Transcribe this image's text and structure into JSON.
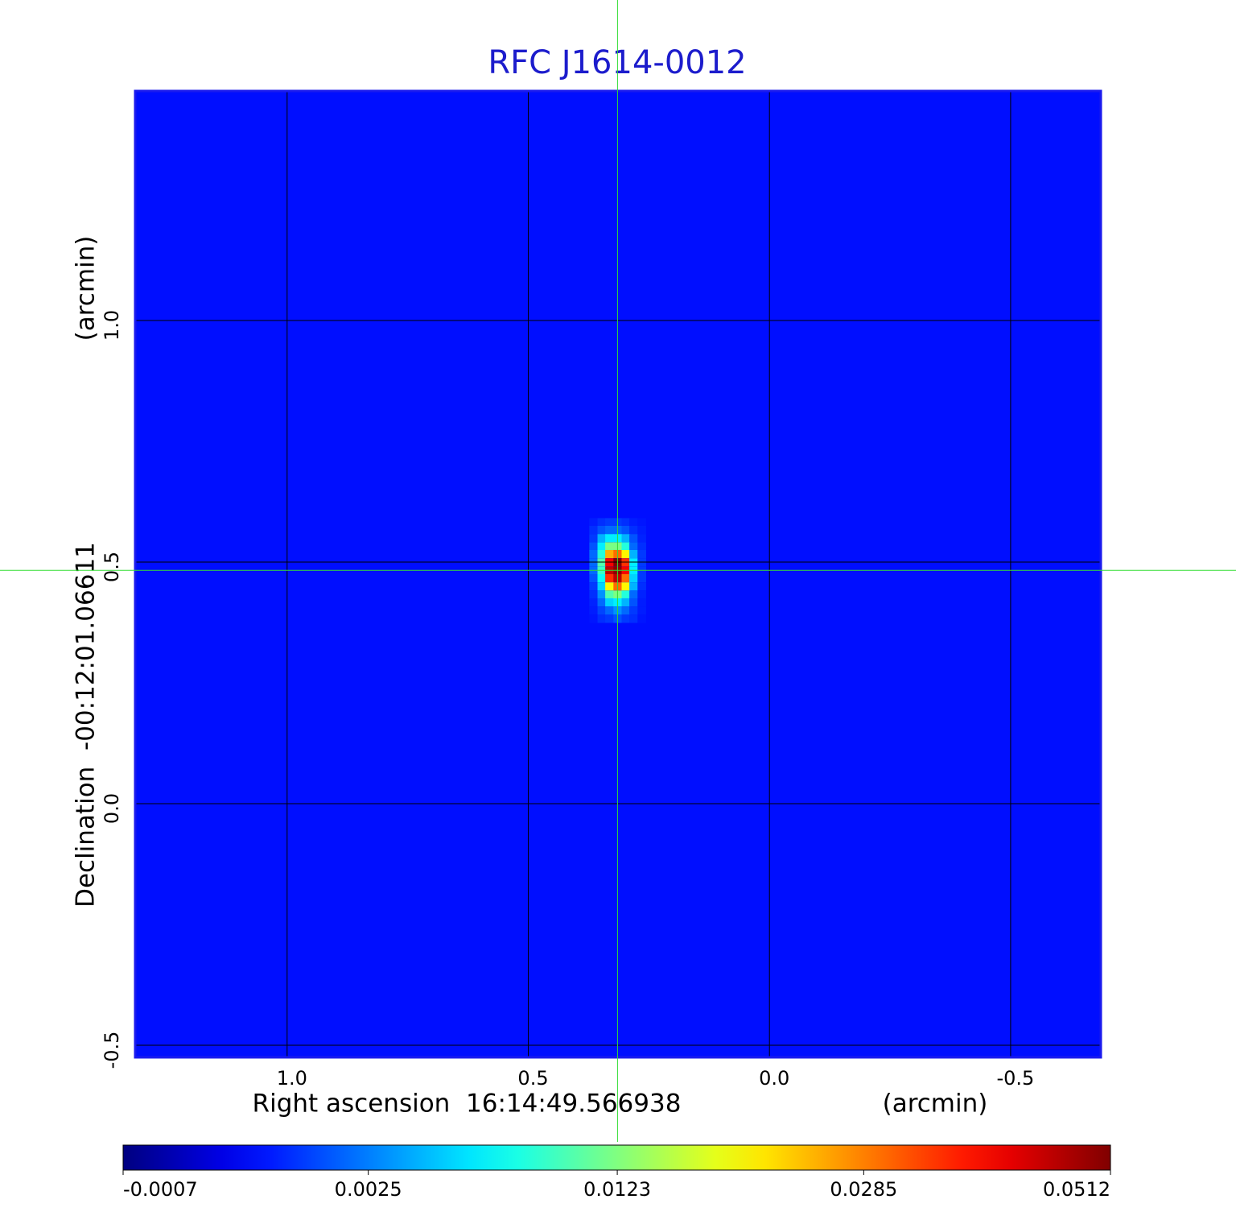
{
  "chart_data": {
    "type": "heatmap",
    "title": "RFC J1614-0012",
    "x_label": "Right ascension  16:14:49.566938",
    "x_unit": "(arcmin)",
    "y_label": "Declination  -00:12:01.06611",
    "y_unit": "(arcmin)",
    "xlim": [
      1.315,
      -0.687
    ],
    "ylim": [
      -0.525,
      1.475
    ],
    "xticks": [
      {
        "value": 1,
        "label": "1.0"
      },
      0.5,
      {
        "value": 0,
        "label": "0.0"
      },
      -0.5
    ],
    "yticks": [
      -0.5,
      {
        "value": 0,
        "label": "0.0"
      },
      0.5,
      {
        "value": 1,
        "label": "1.0"
      }
    ],
    "grid": true,
    "colormap": "jet",
    "background": 0.0003,
    "crosshair": {
      "x": 0.315,
      "y": 0.483,
      "color": "#33dd33"
    },
    "x": [
      0.365,
      0.348,
      0.332,
      0.315,
      0.298,
      0.282,
      0.265
    ],
    "y": [
      0.583,
      0.567,
      0.55,
      0.533,
      0.517,
      0.5,
      0.483,
      0.467,
      0.45,
      0.433,
      0.417,
      0.4,
      0.383
    ],
    "values": [
      [
        0.0005,
        0.0008,
        0.001,
        0.001,
        0.0008,
        0.0005,
        0.0004
      ],
      [
        0.0008,
        0.0015,
        0.002,
        0.002,
        0.0015,
        0.0008,
        0.0005
      ],
      [
        0.001,
        0.004,
        0.006,
        0.006,
        0.004,
        0.0015,
        0.0006
      ],
      [
        0.0015,
        0.006,
        0.012,
        0.012,
        0.008,
        0.002,
        0.0008
      ],
      [
        0.002,
        0.008,
        0.025,
        0.03,
        0.02,
        0.004,
        0.001
      ],
      [
        0.002,
        0.01,
        0.04,
        0.0512,
        0.035,
        0.006,
        0.001
      ],
      [
        0.002,
        0.009,
        0.045,
        0.05,
        0.04,
        0.006,
        0.001
      ],
      [
        0.0015,
        0.007,
        0.035,
        0.045,
        0.03,
        0.005,
        0.001
      ],
      [
        0.001,
        0.005,
        0.02,
        0.03,
        0.02,
        0.004,
        0.0008
      ],
      [
        0.0008,
        0.003,
        0.01,
        0.012,
        0.008,
        0.002,
        0.0006
      ],
      [
        0.0006,
        0.002,
        0.005,
        0.006,
        0.004,
        0.0015,
        0.0005
      ],
      [
        0.0005,
        0.0012,
        0.002,
        0.003,
        0.002,
        0.001,
        0.0005
      ],
      [
        0.0004,
        0.0008,
        0.001,
        0.0015,
        0.001,
        0.0008,
        0.0004
      ]
    ],
    "colorbar": {
      "lim": [
        -0.0007,
        0.0512
      ],
      "scale": "sqrt",
      "ticks": [
        -0.0007,
        0.0025,
        0.0123,
        0.0285,
        0.0512
      ]
    }
  }
}
